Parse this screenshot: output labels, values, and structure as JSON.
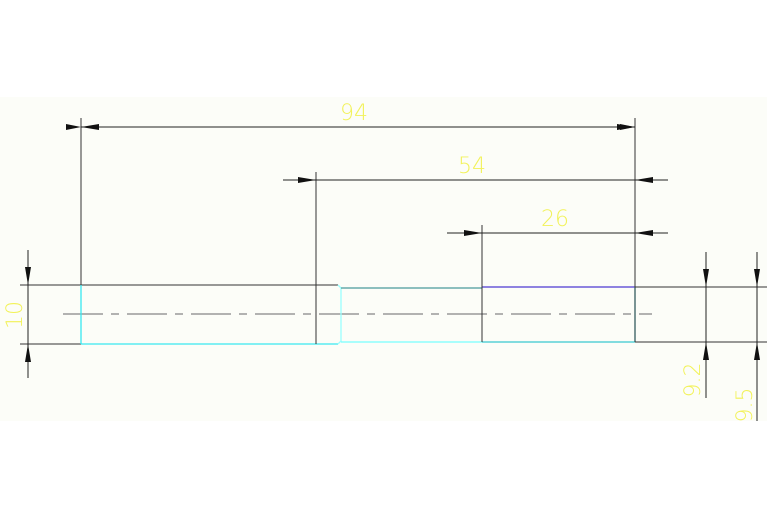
{
  "dimensions": {
    "overall_length": "94",
    "mid_length": "54",
    "right_length": "26",
    "left_diameter": "10",
    "mid_diameter": "9.2",
    "right_diameter": "9.5"
  },
  "colors": {
    "background_band": "#fcfdf8",
    "dimension_line": "#222222",
    "dimension_text": "#f2f25a",
    "outline_cyan": "#38e8f0",
    "outline_purple": "#6a5ad8",
    "centerline": "#999999"
  }
}
